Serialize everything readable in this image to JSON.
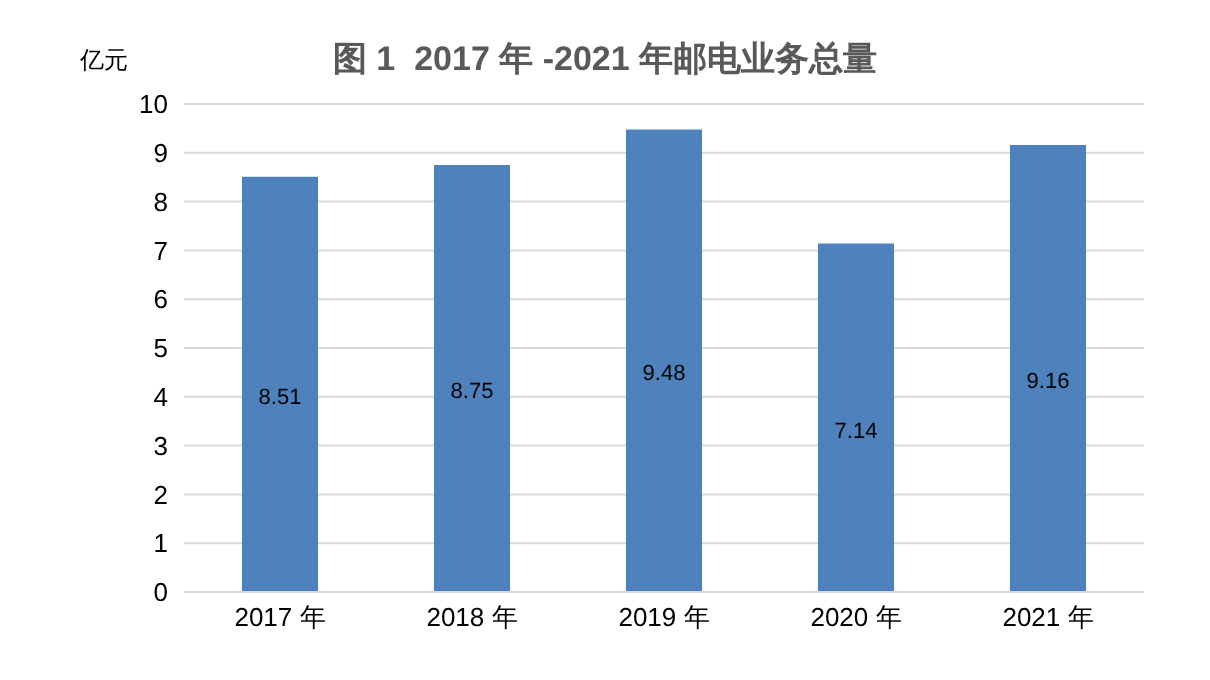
{
  "chart_data": {
    "type": "bar",
    "title": "图 1  2017 年 -2021 年邮电业务总量",
    "ylabel": "亿元",
    "categories": [
      "2017 年",
      "2018 年",
      "2019 年",
      "2020 年",
      "2021 年"
    ],
    "values": [
      8.51,
      8.75,
      9.48,
      7.14,
      9.16
    ],
    "color": "#4f81bd",
    "ylim": [
      0,
      10
    ],
    "yticks": [
      0,
      1,
      2,
      3,
      4,
      5,
      6,
      7,
      8,
      9,
      10
    ],
    "grid": "y",
    "data_labels": true
  }
}
